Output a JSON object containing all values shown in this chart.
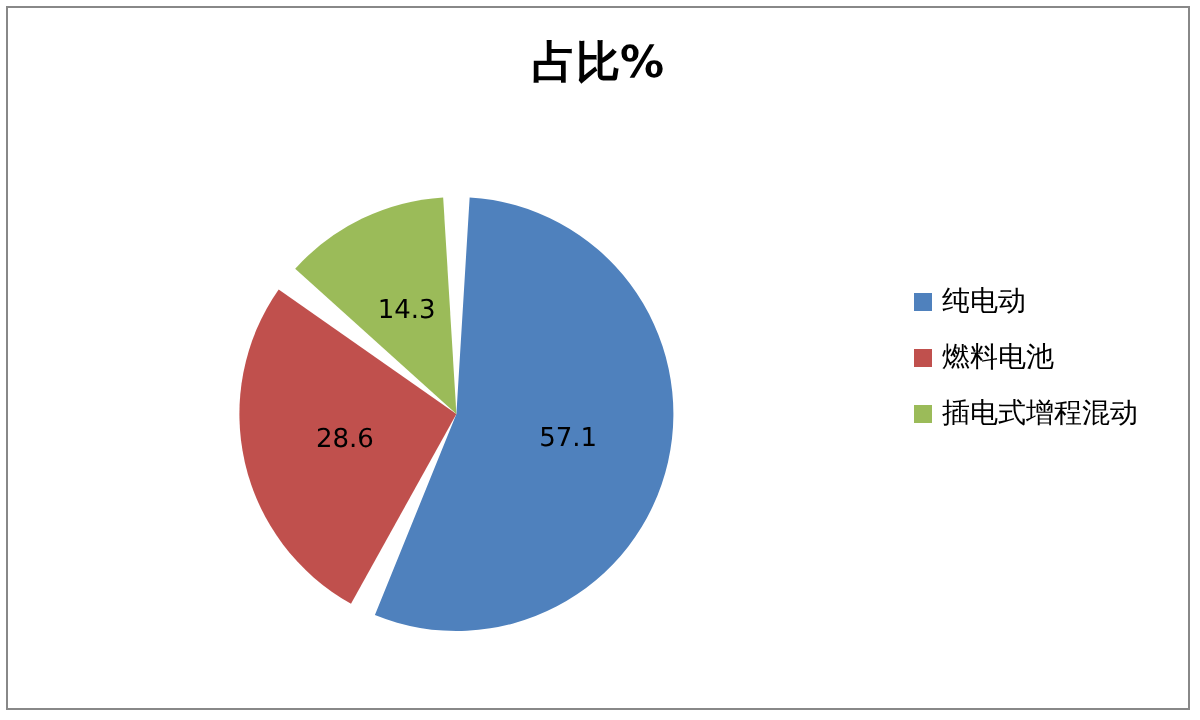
{
  "chart_data": {
    "type": "pie",
    "title": "占比%",
    "categories": [
      "纯电动",
      "燃料电池",
      "插电式增程混动"
    ],
    "values": [
      57.1,
      28.6,
      14.3
    ],
    "colors": [
      "#4f81bd",
      "#c0504d",
      "#9bbb59"
    ],
    "data_labels": true,
    "legend": "right"
  }
}
